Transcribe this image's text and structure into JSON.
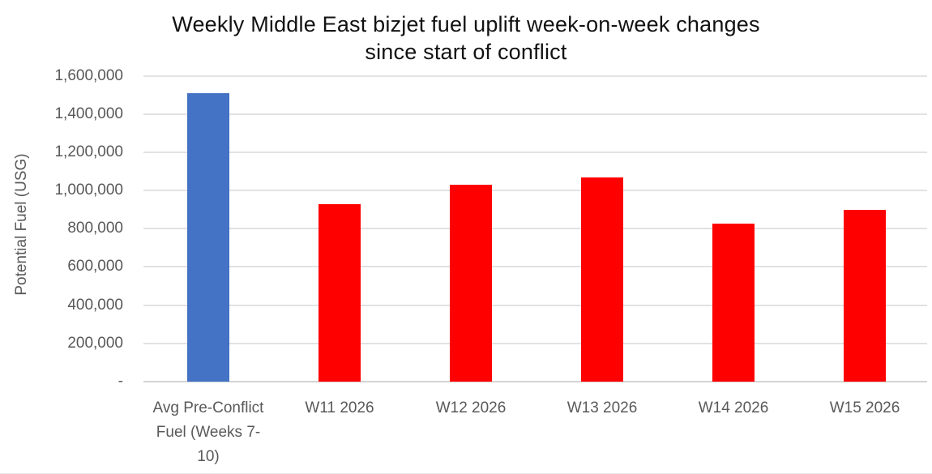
{
  "chart_data": {
    "type": "bar",
    "title": "Weekly Middle East bizjet fuel uplift week-on-week changes since start of conflict",
    "title_lines": [
      "Weekly Middle East bizjet fuel uplift week-on-week changes",
      "since start of conflict"
    ],
    "ylabel": "Potential Fuel (USG)",
    "xlabel": "",
    "categories": [
      "Avg Pre-Conflict Fuel (Weeks 7-10)",
      "W11 2026",
      "W12 2026",
      "W13 2026",
      "W14 2026",
      "W15 2026"
    ],
    "category_lines": [
      [
        "Avg Pre-Conflict",
        "Fuel (Weeks 7-",
        "10)"
      ],
      [
        "W11 2026"
      ],
      [
        "W12 2026"
      ],
      [
        "W13 2026"
      ],
      [
        "W14 2026"
      ],
      [
        "W15 2026"
      ]
    ],
    "values": [
      1510000,
      930000,
      1030000,
      1070000,
      825000,
      900000
    ],
    "point_colors": [
      "#4472C4",
      "#FF0000",
      "#FF0000",
      "#FF0000",
      "#FF0000",
      "#FF0000"
    ],
    "ylim": [
      0,
      1600000
    ],
    "ytick_interval": 200000,
    "ytick_values": [
      0,
      200000,
      400000,
      600000,
      800000,
      1000000,
      1200000,
      1400000,
      1600000
    ],
    "ytick_labels": [
      "-",
      "200,000",
      "400,000",
      "600,000",
      "800,000",
      "1,000,000",
      "1,200,000",
      "1,400,000",
      "1,600,000"
    ],
    "grid": "horizontal",
    "legend": "none"
  },
  "colors": {
    "pre_conflict_bar": "#4472C4",
    "weekly_bar": "#FF0000",
    "gridline": "#E2E2E2",
    "axis_line": "#D4D4D4",
    "axis_text": "#595959",
    "title_text": "#121212",
    "background": "#FFFFFF"
  }
}
